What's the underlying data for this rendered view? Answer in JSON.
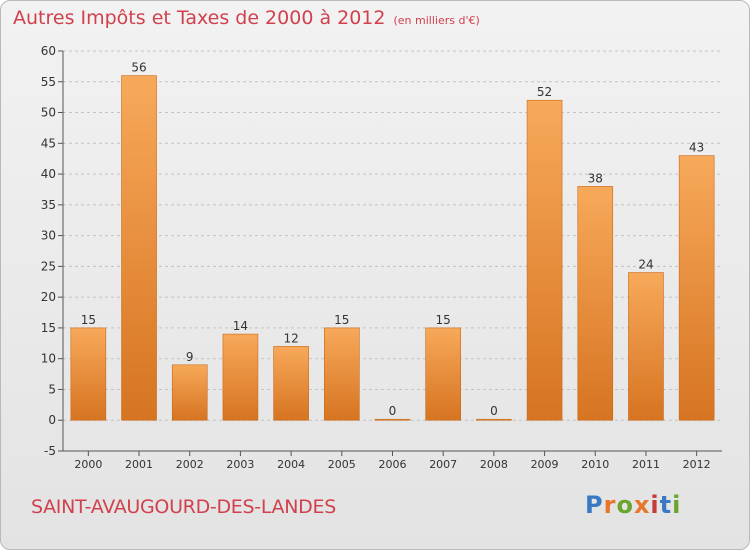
{
  "header": {
    "title": "Autres Impôts et Taxes de 2000 à 2012",
    "unit": "(en milliers d'€)"
  },
  "footer": {
    "commune": "SAINT-AVAUGOURD-DES-LANDES",
    "logo": "Proxiti"
  },
  "colors": {
    "title": "#d1414d",
    "bar_light": "#f7a95a",
    "bar_dark": "#d67421",
    "logo": [
      "#3a78c3",
      "#e8762a",
      "#6aa52d",
      "#e8762a",
      "#c43b3b",
      "#3a78c3",
      "#6aa52d"
    ]
  },
  "chart_data": {
    "type": "bar",
    "categories": [
      "2000",
      "2001",
      "2002",
      "2003",
      "2004",
      "2005",
      "2006",
      "2007",
      "2008",
      "2009",
      "2010",
      "2011",
      "2012"
    ],
    "values": [
      15,
      56,
      9,
      14,
      12,
      15,
      0,
      15,
      0,
      52,
      38,
      24,
      43
    ],
    "title": "Autres Impôts et Taxes de 2000 à 2012",
    "subtitle": "(en milliers d'€)",
    "xlabel": "",
    "ylabel": "",
    "ylim": [
      -5,
      60
    ],
    "yticks": [
      -5,
      0,
      5,
      10,
      15,
      20,
      25,
      30,
      35,
      40,
      45,
      50,
      55,
      60
    ],
    "grid": "horizontal dashed",
    "legend": "none"
  }
}
